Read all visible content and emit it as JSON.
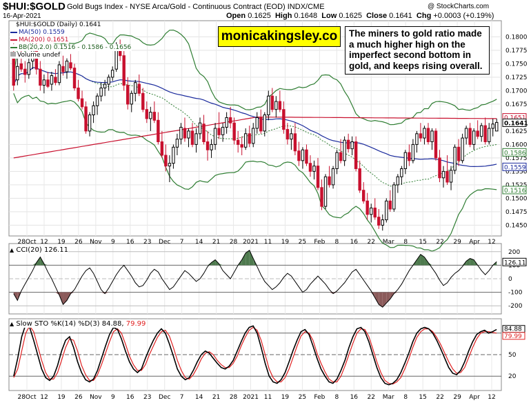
{
  "header": {
    "symbol": "$HUI:$GOLD",
    "name": "Gold Bugs Index - NYSE Arca/Gold - Continuous Contract (EOD) INDX/CME",
    "copyright": "@ StockCharts.com",
    "date": "16-Apr-2021",
    "open_label": "Open",
    "open": "0.1625",
    "high_label": "High",
    "high": "0.1648",
    "low_label": "Low",
    "low": "0.1625",
    "close_label": "Close",
    "close": "0.1641",
    "chg_label": "Chg",
    "chg": "+0.0003 (+0.19%)"
  },
  "watermark": "monicakingsley.co",
  "annotation": "The miners to gold ratio made a much higher high on the imperfect second bottom in gold, and keeps rising overall.",
  "legend": {
    "main": "$HUI:$GOLD (Daily) 0.1641",
    "ma50": "MA(50) 0.1559",
    "ma200": "MA(200) 0.1651",
    "bb": "BB(20,2.0) 0.1516 - 0.1586 - 0.1656",
    "volume": "Volume undef"
  },
  "cci_title": "CCI(20) 126.11",
  "sto_title": "Slow STO %K(14) %D(3) 84.88, 79.99",
  "sto_title_a": "Slow STO %K(14) %D(3) 84.88,",
  "sto_title_b": "79.99",
  "colors": {
    "up": "#000000",
    "down": "#c8102e",
    "ma50": "#1a2a9c",
    "ma200": "#c8102e",
    "bb": "#2e7d32",
    "bbmid": "#2e7d32",
    "cci_fill_pos": "#4e7a4e",
    "cci_fill_neg": "#8b5a5a",
    "sto_d": "#e02020",
    "sto_k": "#000000"
  },
  "chart_data": [
    {
      "type": "candlestick",
      "title": "$HUI:$GOLD (Daily)",
      "ylim": [
        0.143,
        0.183
      ],
      "y_ticks": [
        "0.1800",
        "0.1775",
        "0.1750",
        "0.1725",
        "0.1700",
        "0.1675",
        "0.1625",
        "0.1600",
        "0.1575",
        "0.1550",
        "0.1525",
        "0.1500",
        "0.1475",
        "0.1450"
      ],
      "price_tags": [
        "0.1651",
        "0.1641",
        "0.1586",
        "0.1559",
        "0.1516"
      ],
      "x_labels": [
        "28Oct",
        "12",
        "19",
        "26",
        "Nov",
        "9",
        "16",
        "23",
        "Dec",
        "7",
        "14",
        "21",
        "28",
        "2021",
        "11",
        "19",
        "25",
        "Feb",
        "8",
        "16",
        "22",
        "Mar",
        "8",
        "15",
        "22",
        "29",
        "Apr",
        "12"
      ],
      "candles": [
        [
          0.176,
          0.179,
          0.17,
          0.171
        ],
        [
          0.172,
          0.176,
          0.171,
          0.1745
        ],
        [
          0.175,
          0.1775,
          0.1735,
          0.174
        ],
        [
          0.174,
          0.1755,
          0.1715,
          0.173
        ],
        [
          0.173,
          0.176,
          0.1722,
          0.1752
        ],
        [
          0.1755,
          0.179,
          0.174,
          0.178
        ],
        [
          0.1775,
          0.179,
          0.173,
          0.174
        ],
        [
          0.174,
          0.1755,
          0.17,
          0.171
        ],
        [
          0.171,
          0.173,
          0.1695,
          0.172
        ],
        [
          0.172,
          0.1735,
          0.1705,
          0.1708
        ],
        [
          0.1712,
          0.1735,
          0.17,
          0.1728
        ],
        [
          0.1725,
          0.174,
          0.171,
          0.1715
        ],
        [
          0.1715,
          0.1755,
          0.171,
          0.1748
        ],
        [
          0.1745,
          0.1765,
          0.1728,
          0.1735
        ],
        [
          0.1735,
          0.176,
          0.1722,
          0.1755
        ],
        [
          0.1752,
          0.1768,
          0.1738,
          0.1742
        ],
        [
          0.1742,
          0.175,
          0.17,
          0.1705
        ],
        [
          0.1705,
          0.172,
          0.168,
          0.1685
        ],
        [
          0.1685,
          0.17,
          0.1665,
          0.167
        ],
        [
          0.167,
          0.168,
          0.162,
          0.1625
        ],
        [
          0.1625,
          0.166,
          0.1615,
          0.1655
        ],
        [
          0.1655,
          0.168,
          0.164,
          0.1672
        ],
        [
          0.1672,
          0.1695,
          0.1655,
          0.169
        ],
        [
          0.169,
          0.1715,
          0.168,
          0.1705
        ],
        [
          0.1705,
          0.172,
          0.169,
          0.1712
        ],
        [
          0.1712,
          0.173,
          0.17,
          0.1725
        ],
        [
          0.1725,
          0.1745,
          0.1718,
          0.1738
        ],
        [
          0.174,
          0.179,
          0.1735,
          0.178
        ],
        [
          0.178,
          0.1795,
          0.1755,
          0.1765
        ],
        [
          0.1765,
          0.1775,
          0.17,
          0.171
        ],
        [
          0.171,
          0.1725,
          0.1665,
          0.1675
        ],
        [
          0.1675,
          0.17,
          0.166,
          0.1695
        ],
        [
          0.1695,
          0.172,
          0.168,
          0.1715
        ],
        [
          0.1712,
          0.173,
          0.169,
          0.1695
        ],
        [
          0.1695,
          0.1705,
          0.166,
          0.1665
        ],
        [
          0.1665,
          0.168,
          0.164,
          0.1648
        ],
        [
          0.1648,
          0.167,
          0.1625,
          0.166
        ],
        [
          0.166,
          0.168,
          0.164,
          0.1645
        ],
        [
          0.1645,
          0.166,
          0.16,
          0.1605
        ],
        [
          0.1605,
          0.1625,
          0.1575,
          0.158
        ],
        [
          0.158,
          0.16,
          0.155,
          0.156
        ],
        [
          0.156,
          0.158,
          0.153,
          0.1565
        ],
        [
          0.1565,
          0.16,
          0.1555,
          0.1595
        ],
        [
          0.1595,
          0.162,
          0.158,
          0.161
        ],
        [
          0.161,
          0.164,
          0.16,
          0.1632
        ],
        [
          0.163,
          0.165,
          0.1605,
          0.1612
        ],
        [
          0.1612,
          0.163,
          0.1595,
          0.1625
        ],
        [
          0.1625,
          0.164,
          0.1595,
          0.16
        ],
        [
          0.16,
          0.163,
          0.1585,
          0.162
        ],
        [
          0.162,
          0.165,
          0.161,
          0.164
        ],
        [
          0.1638,
          0.1655,
          0.16,
          0.1605
        ],
        [
          0.1605,
          0.1625,
          0.157,
          0.159
        ],
        [
          0.159,
          0.161,
          0.1575,
          0.16
        ],
        [
          0.16,
          0.164,
          0.159,
          0.163
        ],
        [
          0.163,
          0.166,
          0.161,
          0.1618
        ],
        [
          0.1618,
          0.164,
          0.1605,
          0.1632
        ],
        [
          0.1632,
          0.166,
          0.162,
          0.165
        ],
        [
          0.165,
          0.167,
          0.163,
          0.164
        ],
        [
          0.164,
          0.165,
          0.16,
          0.1608
        ],
        [
          0.1608,
          0.1625,
          0.1585,
          0.16
        ],
        [
          0.16,
          0.1615,
          0.158,
          0.1595
        ],
        [
          0.1595,
          0.163,
          0.159,
          0.162
        ],
        [
          0.162,
          0.1635,
          0.1595,
          0.1602
        ],
        [
          0.1602,
          0.164,
          0.1595,
          0.163
        ],
        [
          0.163,
          0.166,
          0.162,
          0.165
        ],
        [
          0.165,
          0.1665,
          0.162,
          0.1625
        ],
        [
          0.1625,
          0.166,
          0.1615,
          0.1655
        ],
        [
          0.1655,
          0.17,
          0.1645,
          0.169
        ],
        [
          0.169,
          0.1705,
          0.166,
          0.1665
        ],
        [
          0.1665,
          0.169,
          0.165,
          0.168
        ],
        [
          0.168,
          0.17,
          0.166,
          0.1665
        ],
        [
          0.1665,
          0.168,
          0.162,
          0.1628
        ],
        [
          0.1628,
          0.164,
          0.16,
          0.161
        ],
        [
          0.161,
          0.163,
          0.159,
          0.162
        ],
        [
          0.162,
          0.164,
          0.158,
          0.1588
        ],
        [
          0.1588,
          0.1605,
          0.156,
          0.157
        ],
        [
          0.157,
          0.1595,
          0.1555,
          0.159
        ],
        [
          0.159,
          0.16,
          0.156,
          0.1565
        ],
        [
          0.1565,
          0.158,
          0.154,
          0.155
        ],
        [
          0.155,
          0.157,
          0.1535,
          0.156
        ],
        [
          0.156,
          0.1575,
          0.1515,
          0.152
        ],
        [
          0.152,
          0.1535,
          0.1478,
          0.1485
        ],
        [
          0.1485,
          0.1545,
          0.148,
          0.154
        ],
        [
          0.154,
          0.156,
          0.152,
          0.1525
        ],
        [
          0.1525,
          0.156,
          0.1518,
          0.1555
        ],
        [
          0.1555,
          0.159,
          0.1545,
          0.1585
        ],
        [
          0.1585,
          0.161,
          0.1565,
          0.157
        ],
        [
          0.157,
          0.1615,
          0.156,
          0.1608
        ],
        [
          0.1608,
          0.162,
          0.1585,
          0.1592
        ],
        [
          0.1592,
          0.1615,
          0.158,
          0.1605
        ],
        [
          0.1605,
          0.1615,
          0.155,
          0.1555
        ],
        [
          0.1555,
          0.157,
          0.151,
          0.1515
        ],
        [
          0.1515,
          0.153,
          0.149,
          0.1495
        ],
        [
          0.1495,
          0.151,
          0.146,
          0.147
        ],
        [
          0.147,
          0.149,
          0.1455,
          0.1482
        ],
        [
          0.1482,
          0.15,
          0.146,
          0.1465
        ],
        [
          0.1465,
          0.148,
          0.1443,
          0.145
        ],
        [
          0.145,
          0.147,
          0.144,
          0.146
        ],
        [
          0.146,
          0.15,
          0.1455,
          0.1495
        ],
        [
          0.1495,
          0.1515,
          0.1475,
          0.148
        ],
        [
          0.148,
          0.153,
          0.1475,
          0.1525
        ],
        [
          0.1525,
          0.1545,
          0.151,
          0.154
        ],
        [
          0.154,
          0.156,
          0.1525,
          0.1555
        ],
        [
          0.1555,
          0.159,
          0.1545,
          0.1585
        ],
        [
          0.1585,
          0.16,
          0.156,
          0.157
        ],
        [
          0.157,
          0.161,
          0.1565,
          0.16
        ],
        [
          0.16,
          0.1625,
          0.1585,
          0.162
        ],
        [
          0.162,
          0.164,
          0.1605,
          0.1612
        ],
        [
          0.1612,
          0.1635,
          0.16,
          0.163
        ],
        [
          0.163,
          0.164,
          0.16,
          0.1605
        ],
        [
          0.1605,
          0.163,
          0.159,
          0.1625
        ],
        [
          0.1625,
          0.163,
          0.157,
          0.1575
        ],
        [
          0.1575,
          0.159,
          0.153,
          0.1538
        ],
        [
          0.1538,
          0.156,
          0.152,
          0.155
        ],
        [
          0.155,
          0.158,
          0.1525,
          0.153
        ],
        [
          0.153,
          0.156,
          0.1515,
          0.1552
        ],
        [
          0.1552,
          0.16,
          0.1545,
          0.1595
        ],
        [
          0.1595,
          0.161,
          0.156,
          0.157
        ],
        [
          0.157,
          0.162,
          0.1565,
          0.1612
        ],
        [
          0.1612,
          0.1635,
          0.16,
          0.163
        ],
        [
          0.163,
          0.164,
          0.1595,
          0.16
        ],
        [
          0.16,
          0.163,
          0.159,
          0.1625
        ],
        [
          0.1625,
          0.1645,
          0.161,
          0.1615
        ],
        [
          0.1615,
          0.164,
          0.1605,
          0.1635
        ],
        [
          0.1635,
          0.165,
          0.16,
          0.1605
        ],
        [
          0.1605,
          0.164,
          0.16,
          0.163
        ],
        [
          0.163,
          0.1648,
          0.1615,
          0.1638
        ],
        [
          0.1625,
          0.1648,
          0.1625,
          0.1641
        ]
      ]
    },
    {
      "type": "line",
      "title": "CCI(20)",
      "ylim": [
        -260,
        260
      ],
      "y_ticks": [
        "200",
        "100",
        "0",
        "-100",
        "-200"
      ],
      "last_value": "126.11",
      "values": [
        -110,
        -160,
        -90,
        -40,
        10,
        60,
        120,
        160,
        110,
        50,
        0,
        -60,
        -120,
        -190,
        -160,
        -110,
        -80,
        -30,
        20,
        60,
        80,
        40,
        -20,
        -80,
        -110,
        -70,
        -20,
        30,
        70,
        100,
        60,
        20,
        -30,
        -60,
        -50,
        -10,
        40,
        70,
        50,
        0,
        -40,
        -80,
        -60,
        -20,
        20,
        60,
        40,
        10,
        -20,
        0,
        40,
        90,
        120,
        140,
        110,
        60,
        30,
        0,
        50,
        100,
        140,
        190,
        210,
        150,
        90,
        30,
        -20,
        -50,
        -80,
        -60,
        -30,
        10,
        40,
        20,
        -20,
        -60,
        -100,
        -80,
        -40,
        -10,
        20,
        -10,
        -40,
        -80,
        -110,
        -90,
        -60,
        -30,
        10,
        50,
        70,
        30,
        -10,
        -50,
        -90,
        -140,
        -190,
        -210,
        -180,
        -150,
        -110,
        -80,
        -40,
        10,
        60,
        100,
        140,
        180,
        160,
        120,
        80,
        40,
        -10,
        -50,
        -30,
        10,
        40,
        60,
        90,
        130,
        150,
        140,
        100,
        60,
        30,
        60,
        100,
        126
      ]
    },
    {
      "type": "line",
      "title": "Slow STO %K(14) %D(3)",
      "ylim": [
        0,
        100
      ],
      "y_ticks": [
        "80",
        "50",
        "20"
      ],
      "last_values": [
        "84.88",
        "79.99"
      ],
      "series": [
        {
          "name": "%K",
          "values": [
            20,
            45,
            75,
            92,
            88,
            70,
            50,
            30,
            18,
            14,
            20,
            35,
            55,
            70,
            75,
            60,
            40,
            25,
            15,
            12,
            16,
            28,
            45,
            62,
            78,
            88,
            85,
            72,
            55,
            40,
            30,
            25,
            30,
            45,
            58,
            70,
            80,
            86,
            80,
            65,
            48,
            30,
            20,
            15,
            18,
            28,
            40,
            50,
            55,
            52,
            45,
            38,
            32,
            30,
            34,
            42,
            55,
            68,
            80,
            88,
            90,
            80,
            60,
            38,
            20,
            12,
            10,
            15,
            25,
            40,
            56,
            70,
            82,
            85,
            78,
            62,
            45,
            30,
            20,
            12,
            10,
            16,
            28,
            42,
            60,
            75,
            86,
            88,
            82,
            68,
            50,
            32,
            18,
            10,
            8,
            10,
            15,
            25,
            38,
            52,
            68,
            80,
            86,
            88,
            86,
            80,
            70,
            58,
            45,
            32,
            24,
            22,
            28,
            40,
            55,
            68,
            78,
            82,
            84,
            80,
            82,
            85
          ]
        },
        {
          "name": "%D",
          "values": [
            18,
            30,
            55,
            80,
            90,
            82,
            62,
            42,
            25,
            16,
            16,
            25,
            42,
            60,
            72,
            70,
            55,
            35,
            22,
            14,
            14,
            22,
            36,
            52,
            68,
            82,
            86,
            80,
            65,
            48,
            36,
            28,
            28,
            36,
            50,
            62,
            74,
            82,
            84,
            76,
            60,
            42,
            28,
            18,
            16,
            22,
            32,
            44,
            52,
            54,
            50,
            42,
            36,
            32,
            32,
            38,
            48,
            62,
            74,
            84,
            88,
            84,
            70,
            50,
            30,
            18,
            12,
            12,
            18,
            30,
            46,
            62,
            76,
            82,
            80,
            70,
            52,
            38,
            26,
            16,
            12,
            12,
            20,
            34,
            50,
            66,
            80,
            86,
            85,
            75,
            58,
            40,
            25,
            14,
            10,
            9,
            12,
            18,
            30,
            44,
            60,
            74,
            82,
            86,
            86,
            82,
            74,
            64,
            52,
            40,
            30,
            24,
            25,
            32,
            46,
            60,
            72,
            80,
            82,
            82,
            81,
            80
          ]
        }
      ]
    }
  ]
}
